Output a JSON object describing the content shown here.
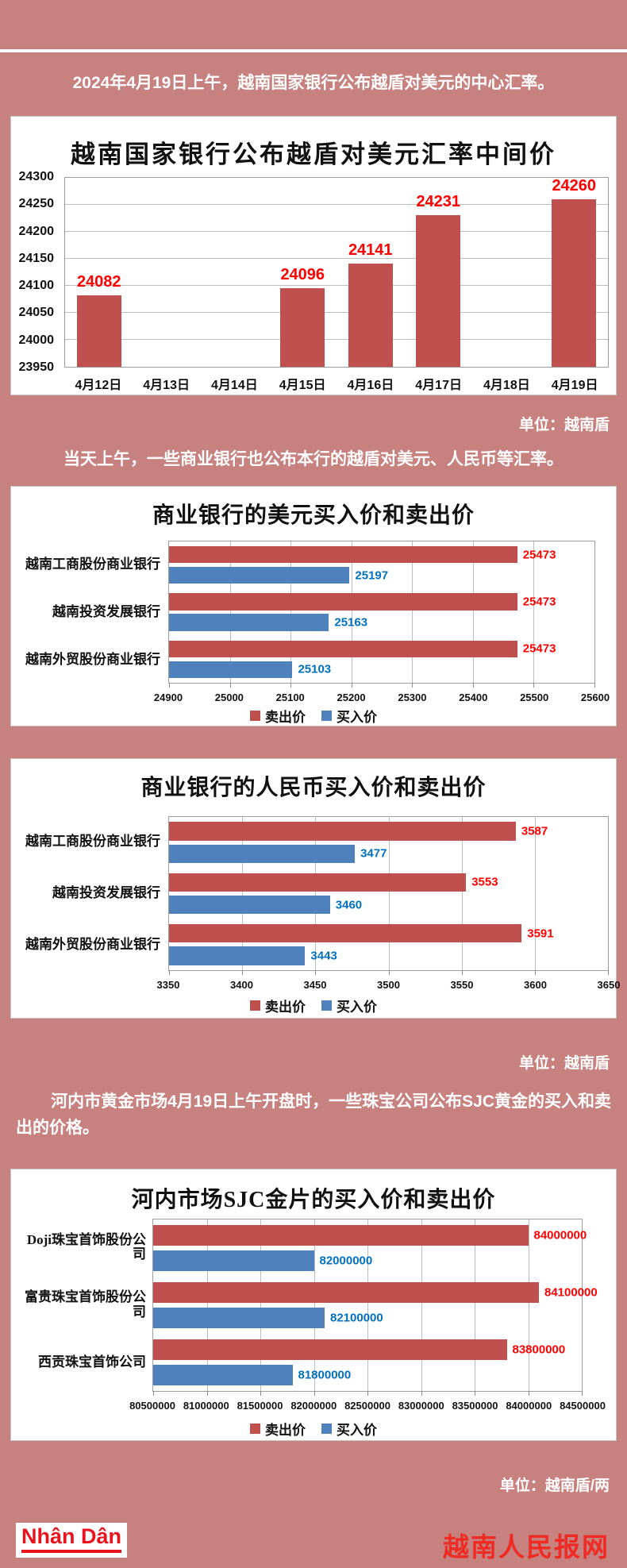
{
  "page": {
    "header_note": "2024年4月19日上午，越南国家银行公布越盾对美元的中心汇率。",
    "para_banks": "当天上午，一些商业银行也公布本行的越盾对美元、人民币等汇率。",
    "para_gold": "河内市黄金市场4月19日上午开盘时，一些珠宝公司公布SJC黄金的买入和卖出的价格。",
    "unit_note_1": "单位：越南盾",
    "unit_note_2": "单位：越南盾",
    "unit_note_3": "单位：越南盾/两",
    "footer": {
      "logo_text": "Nhân Dân",
      "site_name": "越南人民报网"
    }
  },
  "colors": {
    "background": "#c7817e",
    "bar_red": "#c0504d",
    "bar_blue": "#4f81bd",
    "value_label_red": "#ff0000",
    "value_label_blue": "#0070c0",
    "brand_red": "#e8131d"
  },
  "chart_data": [
    {
      "type": "bar",
      "title": "越南国家银行公布越盾对美元汇率中间价",
      "unit_note": "单位：越南盾",
      "categories": [
        "4月12日",
        "4月13日",
        "4月14日",
        "4月15日",
        "4月16日",
        "4月17日",
        "4月18日",
        "4月19日"
      ],
      "values": [
        24082,
        null,
        null,
        24096,
        24141,
        24231,
        null,
        24260
      ],
      "yticks": [
        23950,
        24000,
        24050,
        24100,
        24150,
        24200,
        24250,
        24300
      ],
      "ylim": [
        23950,
        24300
      ],
      "grid": true,
      "legend_position": "none",
      "bar_color": "#c0504d",
      "value_label_color": "#ff0000"
    },
    {
      "type": "bar-horizontal",
      "title": "商业银行的美元买入价和卖出价",
      "categories": [
        "越南工商股份商业银行",
        "越南投资发展银行",
        "越南外贸股份商业银行"
      ],
      "series": [
        {
          "name": "卖出价",
          "color": "#c0504d",
          "value_label_color": "#ff0000",
          "values": [
            25473,
            25473,
            25473
          ]
        },
        {
          "name": "买入价",
          "color": "#4f81bd",
          "value_label_color": "#0070c0",
          "values": [
            25197,
            25163,
            25103
          ]
        }
      ],
      "xticks": [
        24900,
        25000,
        25100,
        25200,
        25300,
        25400,
        25500,
        25600
      ],
      "xlim": [
        24900,
        25600
      ],
      "grid": true,
      "legend_position": "bottom"
    },
    {
      "type": "bar-horizontal",
      "title": "商业银行的人民币买入价和卖出价",
      "unit_note": "单位：越南盾",
      "categories": [
        "越南工商股份商业银行",
        "越南投资发展银行",
        "越南外贸股份商业银行"
      ],
      "series": [
        {
          "name": "卖出价",
          "color": "#c0504d",
          "value_label_color": "#ff0000",
          "values": [
            3587,
            3553,
            3591
          ]
        },
        {
          "name": "买入价",
          "color": "#4f81bd",
          "value_label_color": "#0070c0",
          "values": [
            3477,
            3460,
            3443
          ]
        }
      ],
      "xticks": [
        3350,
        3400,
        3450,
        3500,
        3550,
        3600,
        3650
      ],
      "xlim": [
        3350,
        3650
      ],
      "grid": true,
      "legend_position": "bottom"
    },
    {
      "type": "bar-horizontal",
      "title": "河内市场SJC金片的买入价和卖出价",
      "unit_note": "单位：越南盾/两",
      "categories": [
        "Doji珠宝首饰股份公司",
        "富贵珠宝首饰股份公司",
        "西贡珠宝首饰公司"
      ],
      "series": [
        {
          "name": "卖出价",
          "color": "#c0504d",
          "value_label_color": "#ff0000",
          "values": [
            84000000,
            84100000,
            83800000
          ]
        },
        {
          "name": "买入价",
          "color": "#4f81bd",
          "value_label_color": "#0070c0",
          "values": [
            82000000,
            82100000,
            81800000
          ]
        }
      ],
      "xticks": [
        80500000,
        81000000,
        81500000,
        82000000,
        82500000,
        83000000,
        83500000,
        84000000,
        84500000
      ],
      "xlim": [
        80500000,
        84500000
      ],
      "grid": true,
      "legend_position": "bottom"
    }
  ]
}
